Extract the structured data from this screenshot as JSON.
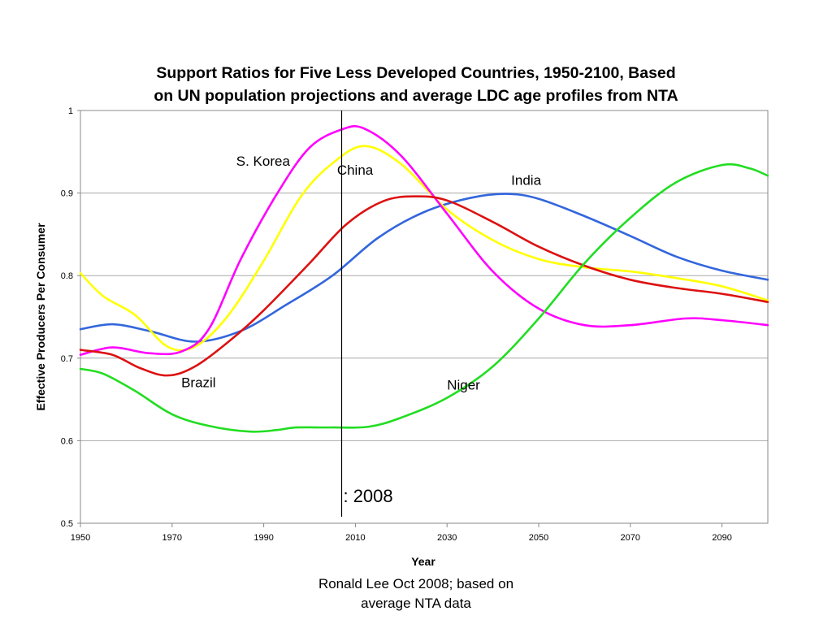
{
  "chart_data": {
    "type": "line",
    "title": [
      "Support Ratios for Five Less Developed Countries, 1950-2100, Based",
      "on UN population projections and average LDC age profiles from NTA"
    ],
    "xlabel": "Year",
    "ylabel": "Effective Producers Per Consumer",
    "xlim": [
      1950,
      2100
    ],
    "ylim": [
      0.5,
      1
    ],
    "x_ticks": [
      1950,
      1970,
      1990,
      2010,
      2030,
      2050,
      2070,
      2090
    ],
    "y_ticks": [
      0.5,
      0.6,
      0.7,
      0.8,
      0.9,
      1
    ],
    "y_tick_labels": [
      "0.5",
      "0.6",
      "0.7",
      "0.8",
      "0.9",
      "1"
    ],
    "grid": "horizontal",
    "vertical_marker": {
      "x": 2007,
      "label": ": 2008"
    },
    "series": [
      {
        "name": "India",
        "color": "#3366dd",
        "points": [
          [
            1950,
            0.735
          ],
          [
            1957,
            0.741
          ],
          [
            1965,
            0.733
          ],
          [
            1975,
            0.72
          ],
          [
            1985,
            0.733
          ],
          [
            1995,
            0.765
          ],
          [
            2005,
            0.8
          ],
          [
            2015,
            0.846
          ],
          [
            2025,
            0.877
          ],
          [
            2035,
            0.894
          ],
          [
            2043,
            0.899
          ],
          [
            2050,
            0.893
          ],
          [
            2060,
            0.872
          ],
          [
            2070,
            0.848
          ],
          [
            2080,
            0.823
          ],
          [
            2090,
            0.806
          ],
          [
            2100,
            0.795
          ]
        ]
      },
      {
        "name": "China",
        "color": "#ffff00",
        "points": [
          [
            1950,
            0.803
          ],
          [
            1955,
            0.775
          ],
          [
            1962,
            0.752
          ],
          [
            1969,
            0.714
          ],
          [
            1975,
            0.714
          ],
          [
            1982,
            0.75
          ],
          [
            1990,
            0.818
          ],
          [
            1998,
            0.895
          ],
          [
            2005,
            0.936
          ],
          [
            2012,
            0.957
          ],
          [
            2020,
            0.935
          ],
          [
            2030,
            0.88
          ],
          [
            2040,
            0.843
          ],
          [
            2050,
            0.82
          ],
          [
            2060,
            0.81
          ],
          [
            2070,
            0.805
          ],
          [
            2080,
            0.797
          ],
          [
            2090,
            0.787
          ],
          [
            2100,
            0.77
          ]
        ]
      },
      {
        "name": "S. Korea",
        "color": "#ff00ff",
        "points": [
          [
            1950,
            0.704
          ],
          [
            1957,
            0.713
          ],
          [
            1965,
            0.706
          ],
          [
            1972,
            0.708
          ],
          [
            1978,
            0.735
          ],
          [
            1985,
            0.82
          ],
          [
            1993,
            0.9
          ],
          [
            2000,
            0.955
          ],
          [
            2007,
            0.977
          ],
          [
            2012,
            0.978
          ],
          [
            2020,
            0.945
          ],
          [
            2030,
            0.875
          ],
          [
            2040,
            0.805
          ],
          [
            2050,
            0.76
          ],
          [
            2060,
            0.74
          ],
          [
            2070,
            0.74
          ],
          [
            2082,
            0.748
          ],
          [
            2090,
            0.746
          ],
          [
            2100,
            0.74
          ]
        ]
      },
      {
        "name": "Brazil",
        "color": "#dd1111",
        "points": [
          [
            1950,
            0.71
          ],
          [
            1957,
            0.704
          ],
          [
            1963,
            0.688
          ],
          [
            1969,
            0.679
          ],
          [
            1975,
            0.69
          ],
          [
            1983,
            0.723
          ],
          [
            1990,
            0.758
          ],
          [
            2000,
            0.815
          ],
          [
            2008,
            0.862
          ],
          [
            2016,
            0.89
          ],
          [
            2023,
            0.896
          ],
          [
            2030,
            0.891
          ],
          [
            2040,
            0.865
          ],
          [
            2050,
            0.835
          ],
          [
            2060,
            0.812
          ],
          [
            2070,
            0.795
          ],
          [
            2080,
            0.785
          ],
          [
            2090,
            0.778
          ],
          [
            2100,
            0.768
          ]
        ]
      },
      {
        "name": "Niger",
        "color": "#22dd22",
        "points": [
          [
            1950,
            0.687
          ],
          [
            1955,
            0.681
          ],
          [
            1962,
            0.66
          ],
          [
            1970,
            0.632
          ],
          [
            1978,
            0.618
          ],
          [
            1987,
            0.611
          ],
          [
            1993,
            0.613
          ],
          [
            1997,
            0.616
          ],
          [
            2005,
            0.616
          ],
          [
            2013,
            0.617
          ],
          [
            2020,
            0.628
          ],
          [
            2030,
            0.652
          ],
          [
            2040,
            0.69
          ],
          [
            2050,
            0.748
          ],
          [
            2060,
            0.815
          ],
          [
            2070,
            0.87
          ],
          [
            2080,
            0.913
          ],
          [
            2090,
            0.934
          ],
          [
            2096,
            0.93
          ],
          [
            2100,
            0.921
          ]
        ]
      }
    ],
    "annotations": [
      {
        "text": "S. Korea",
        "x": 1984,
        "y": 0.933
      },
      {
        "text": "China",
        "x": 2006,
        "y": 0.922
      },
      {
        "text": "India",
        "x": 2044,
        "y": 0.91
      },
      {
        "text": "Brazil",
        "x": 1972,
        "y": 0.665
      },
      {
        "text": "Niger",
        "x": 2030,
        "y": 0.662
      }
    ]
  },
  "credit": [
    "Ronald Lee Oct 2008; based on",
    "average NTA data"
  ]
}
